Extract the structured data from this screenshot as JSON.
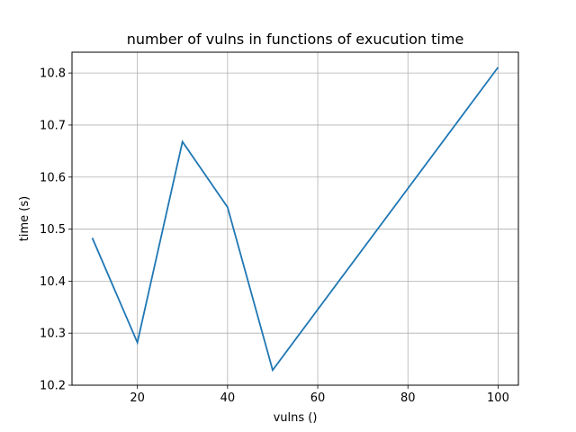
{
  "chart_data": {
    "type": "line",
    "title": "number of vulns in functions of exucution time",
    "xlabel": "vulns ()",
    "ylabel": "time (s)",
    "xlim": [
      5.5,
      104.5
    ],
    "ylim": [
      10.2,
      10.84
    ],
    "xticks": [
      20,
      40,
      60,
      80,
      100
    ],
    "yticks": [
      10.2,
      10.3,
      10.4,
      10.5,
      10.6,
      10.7,
      10.8
    ],
    "ytick_labels": [
      "10.2",
      "10.3",
      "10.4",
      "10.5",
      "10.6",
      "10.7",
      "10.8"
    ],
    "grid": true,
    "series": [
      {
        "color": "#1f77b4",
        "x": [
          10,
          20,
          30,
          40,
          50,
          100
        ],
        "y": [
          10.483,
          10.282,
          10.668,
          10.542,
          10.229,
          10.811
        ]
      }
    ]
  }
}
